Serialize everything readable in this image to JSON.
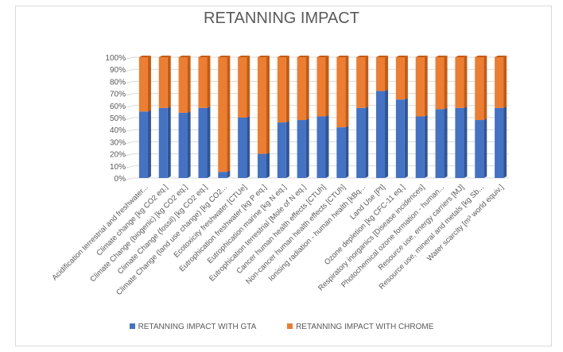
{
  "chart_data": {
    "type": "bar",
    "stacked": "percent",
    "title": "RETANNING IMPACT",
    "xlabel": "",
    "ylabel": "",
    "ylim": [
      0,
      100
    ],
    "yticks": [
      "0%",
      "10%",
      "20%",
      "30%",
      "40%",
      "50%",
      "60%",
      "70%",
      "80%",
      "90%",
      "100%"
    ],
    "grid": true,
    "legend_position": "bottom",
    "categories": [
      "Acidification terrestrial and freshwater...",
      "Climate change [kg CO2 eq.]",
      "Climate Change (biogenic) [kg CO2 eq.]",
      "Climate Change (fossil) [kg CO2 eq.]",
      "Climate Change (land use change) [kg CO2...",
      "Ecotoxicity freshwater [CTUe]",
      "Eutrophication freshwater [kg P eq.]",
      "Eutrophication marine [kg N eq.]",
      "Eutrophication terrestrial [Mole of N eq.]",
      "Cancer human health effects [CTUh]",
      "Non-cancer human health effects [CTUh]",
      "Ionising radiation - human health [kBq...",
      "Land Use [Pt]",
      "Ozone depletion [kg CFC-11 eq.]",
      "Respiratory inorganics [Disease incidences]",
      "Photochemical ozone formation - human...",
      "Resource use, energy carriers [MJ]",
      "Resource use, mineral and metals [kg Sb...",
      "Water scarcity [m³ world equiv.]"
    ],
    "series": [
      {
        "name": "RETANNING IMPACT WITH GTA",
        "color": "#4472c4",
        "values": [
          55,
          58,
          54,
          58,
          5,
          50,
          20,
          46,
          48,
          51,
          42,
          58,
          72,
          65,
          51,
          57,
          58,
          48,
          58
        ]
      },
      {
        "name": "RETANNING IMPACT WITH CHROME",
        "color": "#ed7d31",
        "values": [
          45,
          42,
          46,
          42,
          95,
          50,
          80,
          54,
          52,
          49,
          58,
          42,
          28,
          35,
          49,
          43,
          42,
          52,
          42
        ]
      }
    ]
  }
}
